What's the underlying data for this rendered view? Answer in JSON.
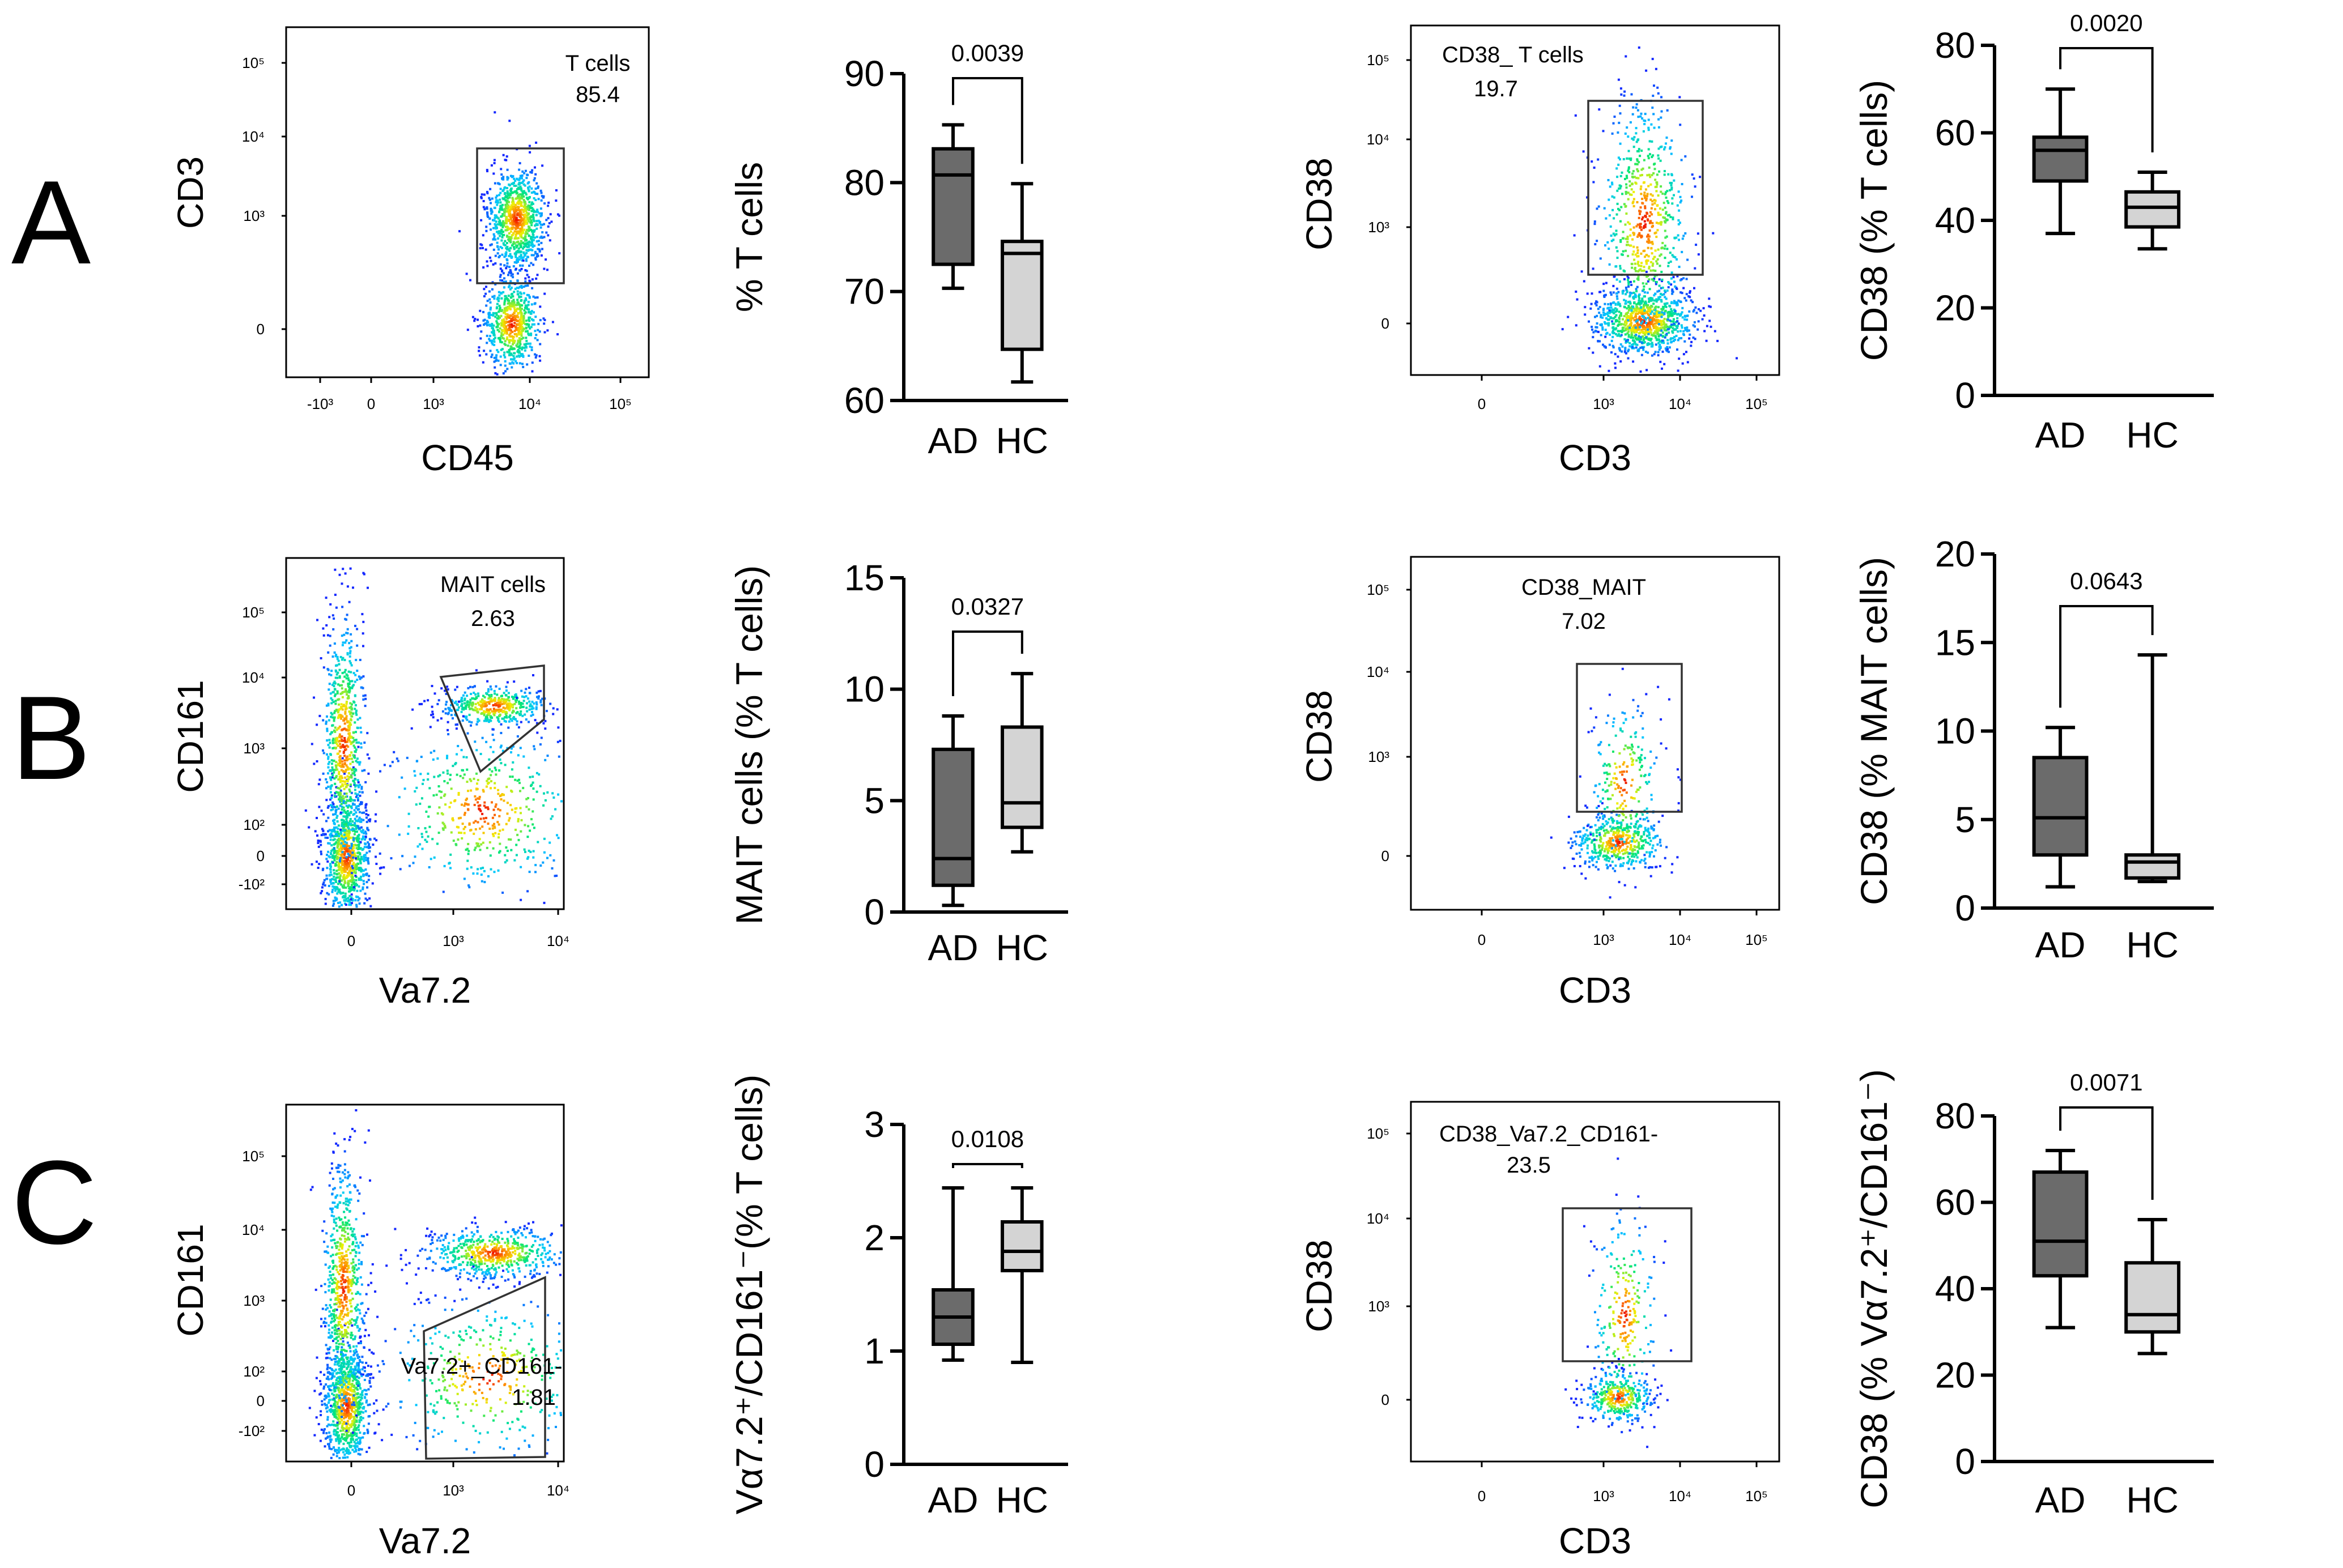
{
  "panels": [
    {
      "label": "A",
      "flow1": {
        "x_label": "CD45",
        "y_label": "CD3",
        "x_ticks": [
          "-10³",
          "0",
          "10³",
          "10⁴",
          "10⁵"
        ],
        "y_ticks": [
          "10⁵",
          "10⁴",
          "10³",
          "0"
        ],
        "gate_name": "T cells",
        "gate_value": "85.4"
      },
      "box1": {
        "y_label": "% T cells",
        "y_ticks": [
          "60",
          "70",
          "80",
          "90"
        ],
        "categories": [
          "AD",
          "HC"
        ],
        "p_value": "0.0039"
      },
      "flow2": {
        "x_label": "CD3",
        "y_label": "CD38",
        "x_ticks": [
          "0",
          "10³",
          "10⁴",
          "10⁵"
        ],
        "y_ticks": [
          "10⁵",
          "10⁴",
          "10³",
          "0"
        ],
        "gate_name": "CD38_ T cells",
        "gate_value": "19.7"
      },
      "box2": {
        "y_label": "CD38 (% T cells)",
        "y_ticks": [
          "0",
          "20",
          "40",
          "60",
          "80"
        ],
        "categories": [
          "AD",
          "HC"
        ],
        "p_value": "0.0020"
      }
    },
    {
      "label": "B",
      "flow1": {
        "x_label": "Va7.2",
        "y_label": "CD161",
        "x_ticks": [
          "0",
          "10³",
          "10⁴"
        ],
        "y_ticks": [
          "10⁵",
          "10⁴",
          "10³",
          "10²",
          "0",
          "-10²"
        ],
        "gate_name": "MAIT cells",
        "gate_value": "2.63"
      },
      "box1": {
        "y_label": "MAIT cells (% T cells)",
        "y_ticks": [
          "0",
          "5",
          "10",
          "15"
        ],
        "categories": [
          "AD",
          "HC"
        ],
        "p_value": "0.0327"
      },
      "flow2": {
        "x_label": "CD3",
        "y_label": "CD38",
        "x_ticks": [
          "0",
          "10³",
          "10⁴",
          "10⁵"
        ],
        "y_ticks": [
          "10⁵",
          "10⁴",
          "10³",
          "0"
        ],
        "gate_name": "CD38_MAIT",
        "gate_value": "7.02"
      },
      "box2": {
        "y_label": "CD38 (% MAIT cells)",
        "y_ticks": [
          "0",
          "5",
          "10",
          "15",
          "20"
        ],
        "categories": [
          "AD",
          "HC"
        ],
        "p_value": "0.0643"
      }
    },
    {
      "label": "C",
      "flow1": {
        "x_label": "Va7.2",
        "y_label": "CD161",
        "x_ticks": [
          "0",
          "10³",
          "10⁴"
        ],
        "y_ticks": [
          "10⁵",
          "10⁴",
          "10³",
          "10²",
          "0",
          "-10²"
        ],
        "gate_name": "Va7.2+_CD161-",
        "gate_value": "1.81"
      },
      "box1": {
        "y_label": "Vα7.2⁺/CD161⁻(% T cells)",
        "y_ticks": [
          "0",
          "1",
          "2",
          "3"
        ],
        "categories": [
          "AD",
          "HC"
        ],
        "p_value": "0.0108"
      },
      "flow2": {
        "x_label": "CD3",
        "y_label": "CD38",
        "x_ticks": [
          "0",
          "10³",
          "10⁴",
          "10⁵"
        ],
        "y_ticks": [
          "10⁵",
          "10⁴",
          "10³",
          "0"
        ],
        "gate_name": "CD38_Va7.2_CD161-",
        "gate_value": "23.5"
      },
      "box2": {
        "y_label": "CD38 (% Vα7.2⁺/CD161⁻)",
        "y_ticks": [
          "0",
          "20",
          "40",
          "60",
          "80"
        ],
        "categories": [
          "AD",
          "HC"
        ],
        "p_value": "0.0071"
      }
    }
  ],
  "colors": {
    "AD": "#6b6b6b",
    "HC": "#d4d4d4"
  },
  "chart_data": [
    {
      "type": "box",
      "panel": "A",
      "ylabel": "% T cells",
      "ylim": [
        60,
        90
      ],
      "categories": [
        "AD",
        "HC"
      ],
      "series": [
        {
          "name": "AD",
          "min": 70.3,
          "q1": 72.5,
          "median": 80.7,
          "q3": 83.1,
          "max": 85.3
        },
        {
          "name": "HC",
          "min": 61.7,
          "q1": 64.7,
          "median": 73.5,
          "q3": 74.6,
          "max": 79.9
        }
      ],
      "annotations": [
        "0.0039"
      ]
    },
    {
      "type": "box",
      "panel": "A",
      "ylabel": "CD38 (% T cells)",
      "ylim": [
        0,
        80
      ],
      "categories": [
        "AD",
        "HC"
      ],
      "series": [
        {
          "name": "AD",
          "min": 37,
          "q1": 49,
          "median": 56,
          "q3": 59,
          "max": 70
        },
        {
          "name": "HC",
          "min": 33.5,
          "q1": 38.5,
          "median": 43,
          "q3": 46.5,
          "max": 51
        }
      ],
      "annotations": [
        "0.0020"
      ]
    },
    {
      "type": "box",
      "panel": "B",
      "ylabel": "MAIT cells (% T cells)",
      "ylim": [
        0,
        15
      ],
      "categories": [
        "AD",
        "HC"
      ],
      "series": [
        {
          "name": "AD",
          "min": 0.3,
          "q1": 1.2,
          "median": 2.4,
          "q3": 7.3,
          "max": 8.8
        },
        {
          "name": "HC",
          "min": 2.7,
          "q1": 3.8,
          "median": 4.9,
          "q3": 8.3,
          "max": 10.7
        }
      ],
      "annotations": [
        "0.0327"
      ]
    },
    {
      "type": "box",
      "panel": "B",
      "ylabel": "CD38 (% MAIT cells)",
      "ylim": [
        0,
        20
      ],
      "categories": [
        "AD",
        "HC"
      ],
      "series": [
        {
          "name": "AD",
          "min": 1.2,
          "q1": 3.0,
          "median": 5.1,
          "q3": 8.5,
          "max": 10.2
        },
        {
          "name": "HC",
          "min": 1.5,
          "q1": 1.7,
          "median": 2.6,
          "q3": 3.0,
          "max": 14.3
        }
      ],
      "annotations": [
        "0.0643"
      ]
    },
    {
      "type": "box",
      "panel": "C",
      "ylabel": "Vα7.2⁺/CD161⁻(% T cells)",
      "ylim": [
        0,
        3
      ],
      "categories": [
        "AD",
        "HC"
      ],
      "series": [
        {
          "name": "AD",
          "min": 0.92,
          "q1": 1.06,
          "median": 1.3,
          "q3": 1.54,
          "max": 2.44
        },
        {
          "name": "HC",
          "min": 0.9,
          "q1": 1.71,
          "median": 1.88,
          "q3": 2.14,
          "max": 2.44
        }
      ],
      "annotations": [
        "0.0108"
      ]
    },
    {
      "type": "box",
      "panel": "C",
      "ylabel": "CD38 (% Vα7.2⁺/CD161⁻)",
      "ylim": [
        0,
        80
      ],
      "categories": [
        "AD",
        "HC"
      ],
      "series": [
        {
          "name": "AD",
          "min": 31,
          "q1": 43,
          "median": 51,
          "q3": 67,
          "max": 72
        },
        {
          "name": "HC",
          "min": 25,
          "q1": 30,
          "median": 34,
          "q3": 46,
          "max": 56
        }
      ],
      "annotations": [
        "0.0071"
      ]
    }
  ]
}
